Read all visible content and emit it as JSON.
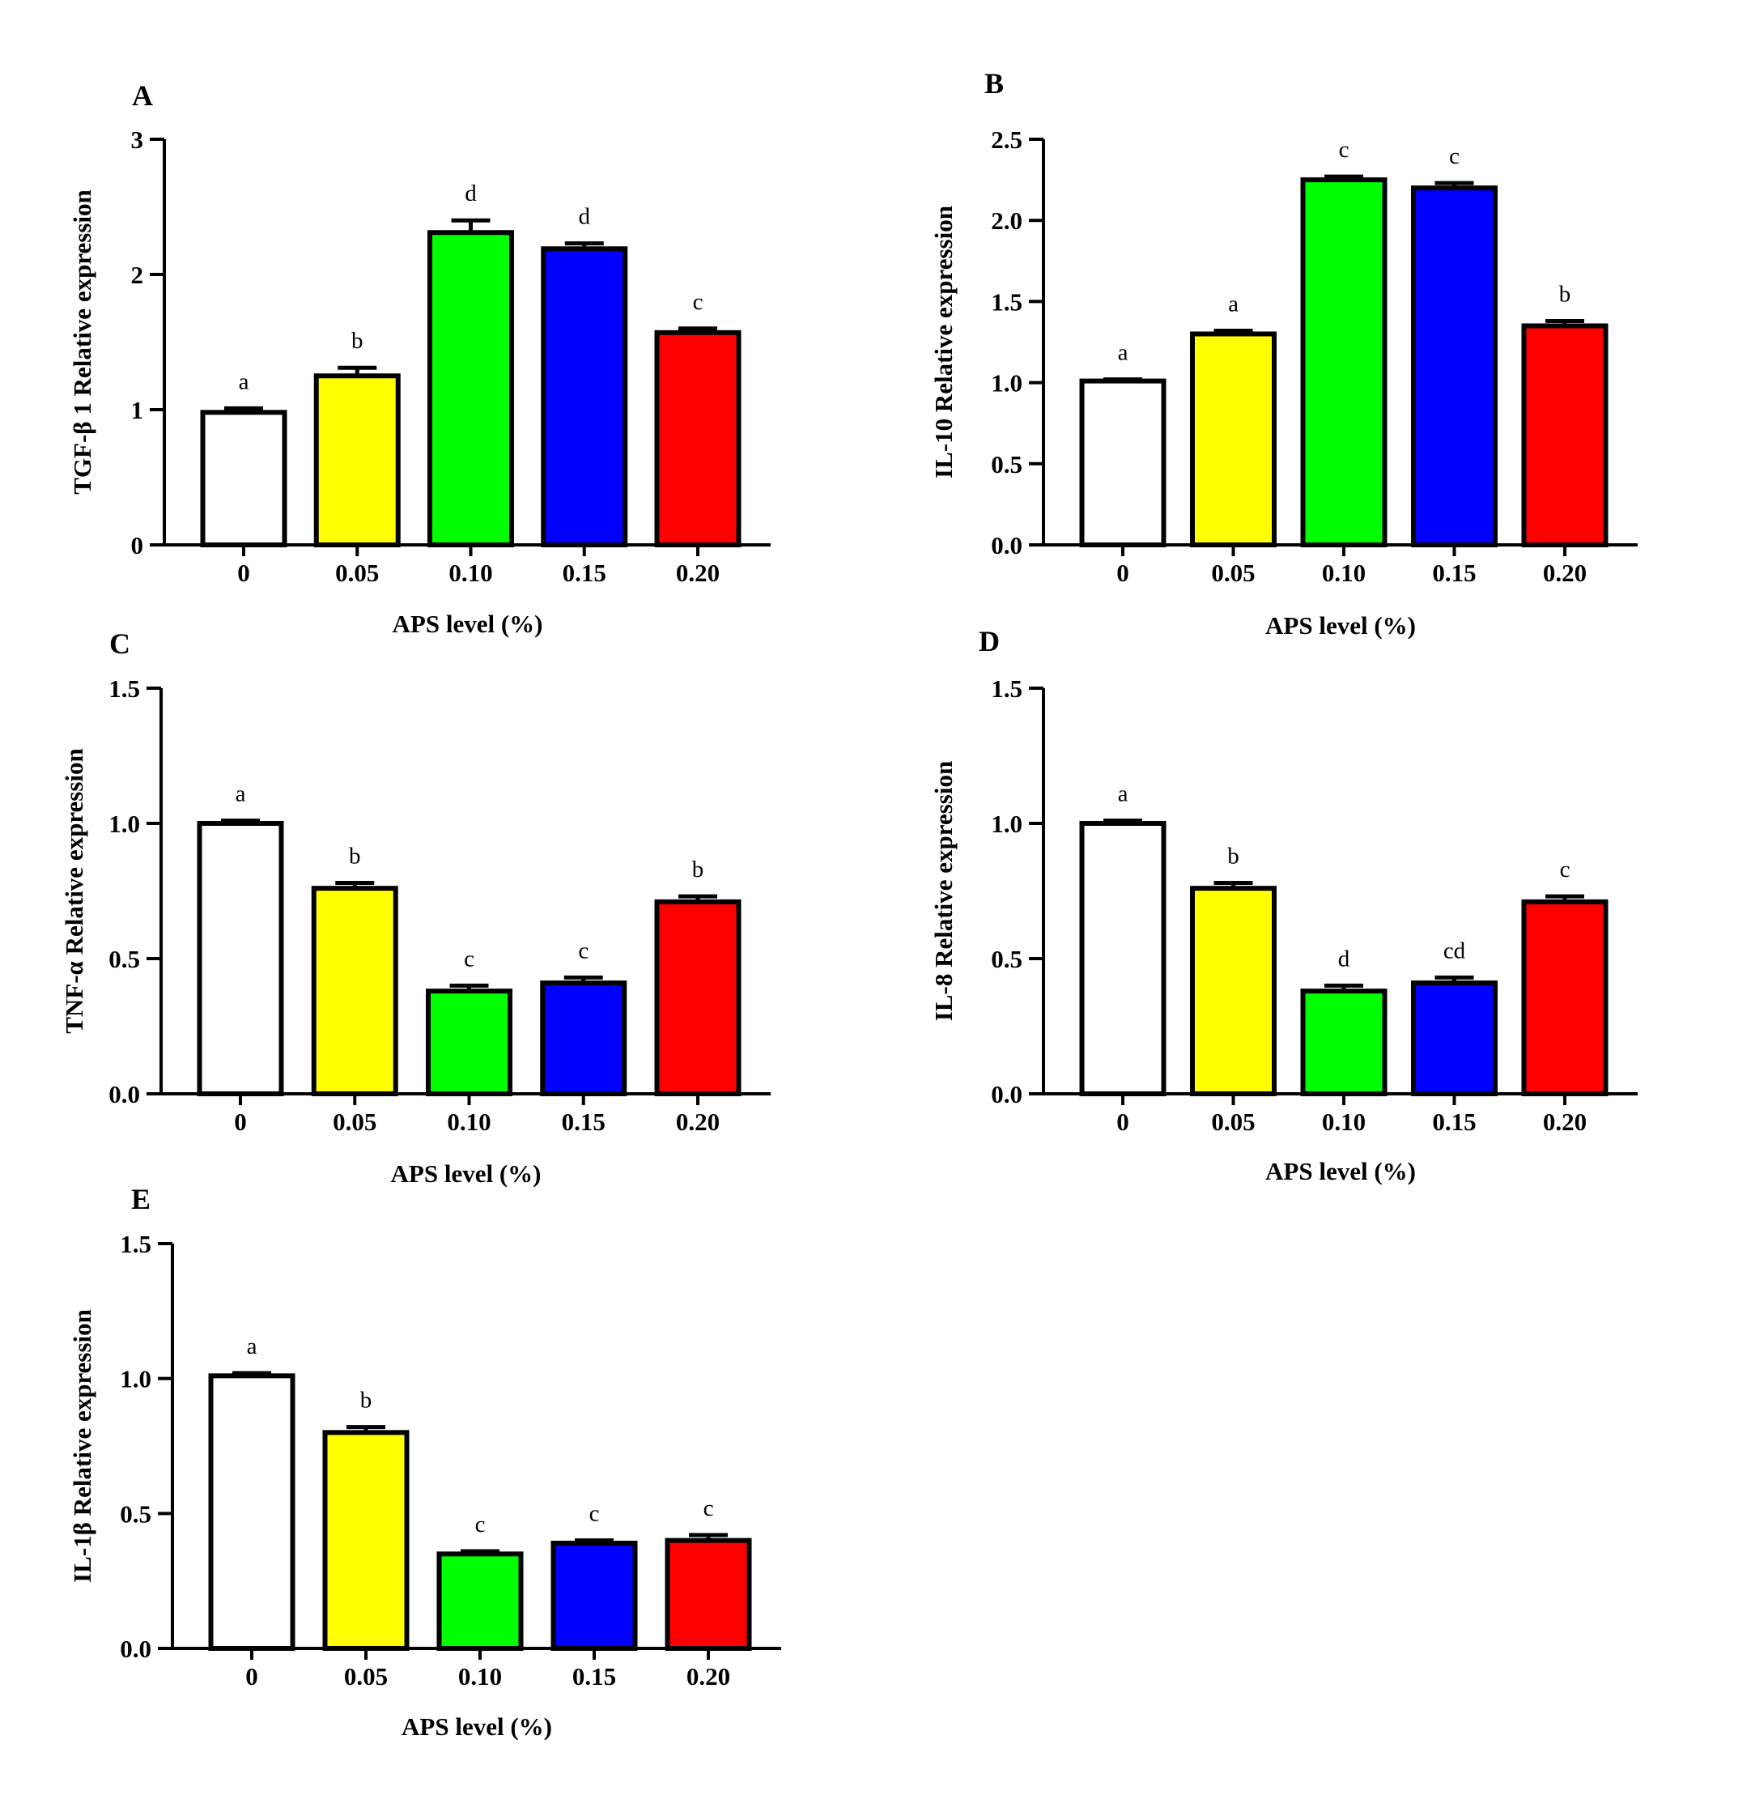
{
  "figure": {
    "name": "cytokine-expression-figure"
  },
  "chart_data": [
    {
      "panel": "A",
      "type": "bar",
      "categories": [
        "0",
        "0.05",
        "0.10",
        "0.15",
        "0.20"
      ],
      "values": [
        0.98,
        1.25,
        2.31,
        2.19,
        1.57
      ],
      "errors": [
        0.03,
        0.06,
        0.09,
        0.04,
        0.03
      ],
      "significance": [
        "a",
        "b",
        "d",
        "d",
        "c"
      ],
      "colors": [
        "#ffffff",
        "#ffff00",
        "#00ff00",
        "#0000ff",
        "#ff0000"
      ],
      "xlabel": "APS level (%)",
      "ylabel": "TGF-β 1 Relative expression",
      "ylim": [
        0,
        3
      ],
      "yticks": [
        "0",
        "1",
        "2",
        "3"
      ],
      "ytick_values": [
        0,
        1,
        2,
        3
      ]
    },
    {
      "panel": "B",
      "type": "bar",
      "categories": [
        "0",
        "0.05",
        "0.10",
        "0.15",
        "0.20"
      ],
      "values": [
        1.01,
        1.3,
        2.25,
        2.2,
        1.35
      ],
      "errors": [
        0.01,
        0.02,
        0.02,
        0.03,
        0.03
      ],
      "significance": [
        "a",
        "a",
        "c",
        "c",
        "b"
      ],
      "colors": [
        "#ffffff",
        "#ffff00",
        "#00ff00",
        "#0000ff",
        "#ff0000"
      ],
      "xlabel": "APS level (%)",
      "ylabel": "IL-10 Relative expression",
      "ylim": [
        0,
        2.5
      ],
      "yticks": [
        "0.0",
        "0.5",
        "1.0",
        "1.5",
        "2.0",
        "2.5"
      ],
      "ytick_values": [
        0,
        0.5,
        1,
        1.5,
        2,
        2.5
      ]
    },
    {
      "panel": "C",
      "type": "bar",
      "categories": [
        "0",
        "0.05",
        "0.10",
        "0.15",
        "0.20"
      ],
      "values": [
        1.0,
        0.76,
        0.38,
        0.41,
        0.71
      ],
      "errors": [
        0.01,
        0.02,
        0.02,
        0.02,
        0.02
      ],
      "significance": [
        "a",
        "b",
        "c",
        "c",
        "b"
      ],
      "colors": [
        "#ffffff",
        "#ffff00",
        "#00ff00",
        "#0000ff",
        "#ff0000"
      ],
      "xlabel": "APS level (%)",
      "ylabel": "TNF-α Relative expression",
      "ylim": [
        0,
        1.5
      ],
      "yticks": [
        "0.0",
        "0.5",
        "1.0",
        "1.5"
      ],
      "ytick_values": [
        0,
        0.5,
        1,
        1.5
      ]
    },
    {
      "panel": "D",
      "type": "bar",
      "categories": [
        "0",
        "0.05",
        "0.10",
        "0.15",
        "0.20"
      ],
      "values": [
        1.0,
        0.76,
        0.38,
        0.41,
        0.71
      ],
      "errors": [
        0.01,
        0.02,
        0.02,
        0.02,
        0.02
      ],
      "significance": [
        "a",
        "b",
        "d",
        "cd",
        "c"
      ],
      "colors": [
        "#ffffff",
        "#ffff00",
        "#00ff00",
        "#0000ff",
        "#ff0000"
      ],
      "xlabel": "APS level (%)",
      "ylabel": "IL-8 Relative expression",
      "ylim": [
        0,
        1.5
      ],
      "yticks": [
        "0.0",
        "0.5",
        "1.0",
        "1.5"
      ],
      "ytick_values": [
        0,
        0.5,
        1,
        1.5
      ]
    },
    {
      "panel": "E",
      "type": "bar",
      "categories": [
        "0",
        "0.05",
        "0.10",
        "0.15",
        "0.20"
      ],
      "values": [
        1.01,
        0.8,
        0.35,
        0.39,
        0.4
      ],
      "errors": [
        0.01,
        0.02,
        0.01,
        0.01,
        0.02
      ],
      "significance": [
        "a",
        "b",
        "c",
        "c",
        "c"
      ],
      "colors": [
        "#ffffff",
        "#ffff00",
        "#00ff00",
        "#0000ff",
        "#ff0000"
      ],
      "xlabel": "APS level (%)",
      "ylabel": "IL-1β Relative expression",
      "ylim": [
        0,
        1.5
      ],
      "yticks": [
        "0.0",
        "0.5",
        "1.0",
        "1.5"
      ],
      "ytick_values": [
        0,
        0.5,
        1,
        1.5
      ]
    }
  ]
}
